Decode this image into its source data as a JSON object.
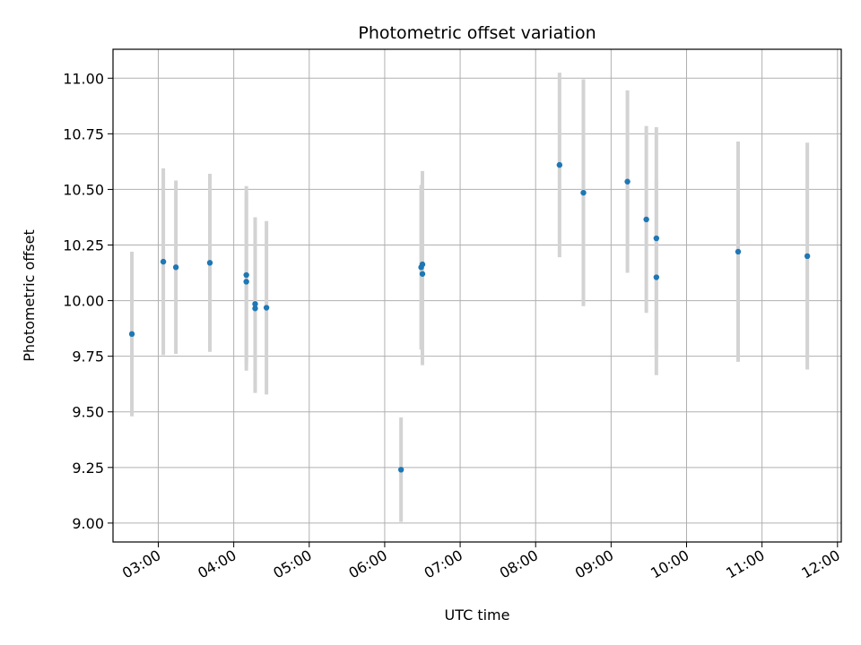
{
  "chart_data": {
    "type": "scatter",
    "title": "Photometric offset variation",
    "xlabel": "UTC time",
    "ylabel": "Photometric offset",
    "xlim": [
      "02:24",
      "12:03"
    ],
    "ylim": [
      8.915,
      11.13
    ],
    "x_ticks": [
      "03:00",
      "04:00",
      "05:00",
      "06:00",
      "07:00",
      "08:00",
      "09:00",
      "10:00",
      "11:00",
      "12:00"
    ],
    "y_ticks": [
      "9.00",
      "9.25",
      "9.50",
      "9.75",
      "10.00",
      "10.25",
      "10.50",
      "10.75",
      "11.00"
    ],
    "grid": true,
    "point_color": "#1f77b4",
    "errorbar_color": "#d3d3d3",
    "points": [
      {
        "x": "02:39",
        "y": 9.85,
        "yerr": 0.37
      },
      {
        "x": "03:04",
        "y": 10.175,
        "yerr": 0.42
      },
      {
        "x": "03:14",
        "y": 10.15,
        "yerr": 0.39
      },
      {
        "x": "03:41",
        "y": 10.17,
        "yerr": 0.4
      },
      {
        "x": "04:10",
        "y": 10.115,
        "yerr": 0.4
      },
      {
        "x": "04:10",
        "y": 10.085,
        "yerr": 0.4
      },
      {
        "x": "04:17",
        "y": 9.985,
        "yerr": 0.39
      },
      {
        "x": "04:17",
        "y": 9.965,
        "yerr": 0.38
      },
      {
        "x": "04:26",
        "y": 9.968,
        "yerr": 0.39
      },
      {
        "x": "06:13",
        "y": 9.24,
        "yerr": 0.235
      },
      {
        "x": "06:29",
        "y": 10.15,
        "yerr": 0.37
      },
      {
        "x": "06:30",
        "y": 10.163,
        "yerr": 0.42
      },
      {
        "x": "06:30",
        "y": 10.12,
        "yerr": 0.41
      },
      {
        "x": "08:19",
        "y": 10.61,
        "yerr": 0.415
      },
      {
        "x": "08:38",
        "y": 10.485,
        "yerr": 0.51
      },
      {
        "x": "09:13",
        "y": 10.535,
        "yerr": 0.41
      },
      {
        "x": "09:28",
        "y": 10.365,
        "yerr": 0.42
      },
      {
        "x": "09:36",
        "y": 10.28,
        "yerr": 0.5
      },
      {
        "x": "09:36",
        "y": 10.105,
        "yerr": 0.44
      },
      {
        "x": "10:41",
        "y": 10.22,
        "yerr": 0.495
      },
      {
        "x": "11:36",
        "y": 10.2,
        "yerr": 0.51
      }
    ]
  }
}
